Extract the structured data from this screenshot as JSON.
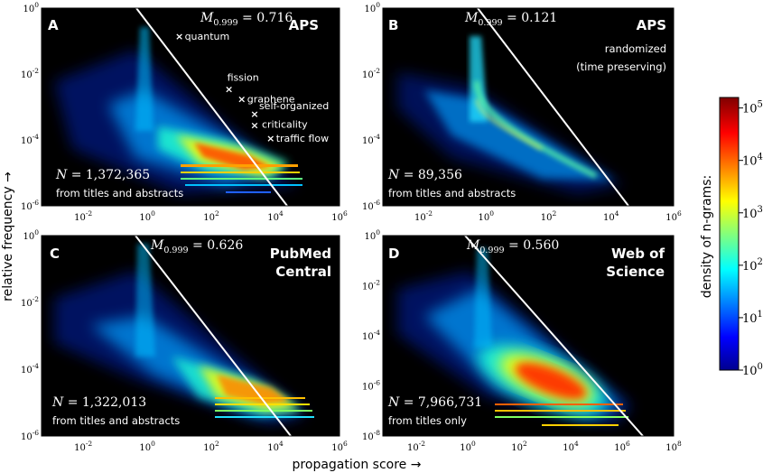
{
  "chart_data": [
    {
      "type": "heatmap",
      "panel": "A",
      "dataset": [
        "APS"
      ],
      "metric_label": "M",
      "metric_subscript": "0.999",
      "metric_value": "0.716",
      "n_label": "N",
      "n_value": "1,372,365",
      "source": "from titles and abstracts",
      "x_ticks": [
        "10",
        "10",
        "10",
        "10",
        "10"
      ],
      "x_exps": [
        "-2",
        "0",
        "2",
        "4",
        "6"
      ],
      "x_log_range": [
        -3.3,
        6
      ],
      "y_ticks": [
        "10",
        "10",
        "10",
        "10"
      ],
      "y_exps": [
        "0",
        "-2",
        "-4",
        "-6"
      ],
      "y_log_range": [
        -6,
        0
      ],
      "annotated_ngrams": [
        {
          "label": "quantum",
          "log_x": 1.0,
          "log_y": -0.85
        },
        {
          "label": "fission",
          "log_x": 2.55,
          "log_y": -2.45
        },
        {
          "label": "graphene",
          "log_x": 2.95,
          "log_y": -2.75
        },
        {
          "label": "self-organized",
          "log_x": 3.35,
          "log_y": -3.2
        },
        {
          "label": "criticality",
          "log_x": 3.35,
          "log_y": -3.55
        },
        {
          "label": "traffic flow",
          "log_x": 3.85,
          "log_y": -3.95
        }
      ]
    },
    {
      "type": "heatmap",
      "panel": "B",
      "dataset": [
        "APS"
      ],
      "subtitle": [
        "randomized",
        "(time preserving)"
      ],
      "metric_label": "M",
      "metric_subscript": "0.999",
      "metric_value": "0.121",
      "n_label": "N",
      "n_value": "89,356",
      "source": "from titles and abstracts",
      "x_ticks": [
        "10",
        "10",
        "10",
        "10",
        "10"
      ],
      "x_exps": [
        "-2",
        "0",
        "2",
        "4",
        "6"
      ],
      "x_log_range": [
        -3.3,
        6
      ],
      "y_ticks": [
        "10",
        "10",
        "10",
        "10"
      ],
      "y_exps": [
        "0",
        "-2",
        "-4",
        "-6"
      ],
      "y_log_range": [
        -6,
        0
      ]
    },
    {
      "type": "heatmap",
      "panel": "C",
      "dataset": [
        "PubMed",
        "Central"
      ],
      "metric_label": "M",
      "metric_subscript": "0.999",
      "metric_value": "0.626",
      "n_label": "N",
      "n_value": "1,322,013",
      "source": "from titles and abstracts",
      "x_ticks": [
        "10",
        "10",
        "10",
        "10",
        "10"
      ],
      "x_exps": [
        "-2",
        "0",
        "2",
        "4",
        "6"
      ],
      "x_log_range": [
        -3.3,
        6
      ],
      "y_ticks": [
        "10",
        "10",
        "10",
        "10"
      ],
      "y_exps": [
        "0",
        "-2",
        "-4",
        "-6"
      ],
      "y_log_range": [
        -6,
        0
      ]
    },
    {
      "type": "heatmap",
      "panel": "D",
      "dataset": [
        "Web of",
        "Science"
      ],
      "metric_label": "M",
      "metric_subscript": "0.999",
      "metric_value": "0.560",
      "n_label": "N",
      "n_value": "7,966,731",
      "source": "from titles only",
      "x_ticks": [
        "10",
        "10",
        "10",
        "10",
        "10",
        "10"
      ],
      "x_exps": [
        "-2",
        "0",
        "2",
        "4",
        "6",
        "8"
      ],
      "x_log_range": [
        -3.3,
        8
      ],
      "y_ticks": [
        "10",
        "10",
        "10",
        "10",
        "10"
      ],
      "y_exps": [
        "0",
        "-2",
        "-4",
        "-6",
        "-8"
      ],
      "y_log_range": [
        -8,
        0
      ]
    }
  ],
  "xlabel": "propagation score →",
  "ylabel": "relative frequency →",
  "colorbar": {
    "label": "density of n-grams:",
    "tick_base": [
      "10",
      "10",
      "10",
      "10",
      "10",
      "10"
    ],
    "tick_exps": [
      "5",
      "4",
      "3",
      "2",
      "1",
      "0"
    ],
    "log_range": [
      0,
      5.2
    ]
  },
  "colors": {
    "background": "#000000",
    "line": "#ffffff",
    "colormap": [
      "#00008f",
      "#0000ff",
      "#00ffff",
      "#ffff00",
      "#ff0000",
      "#800000"
    ]
  }
}
